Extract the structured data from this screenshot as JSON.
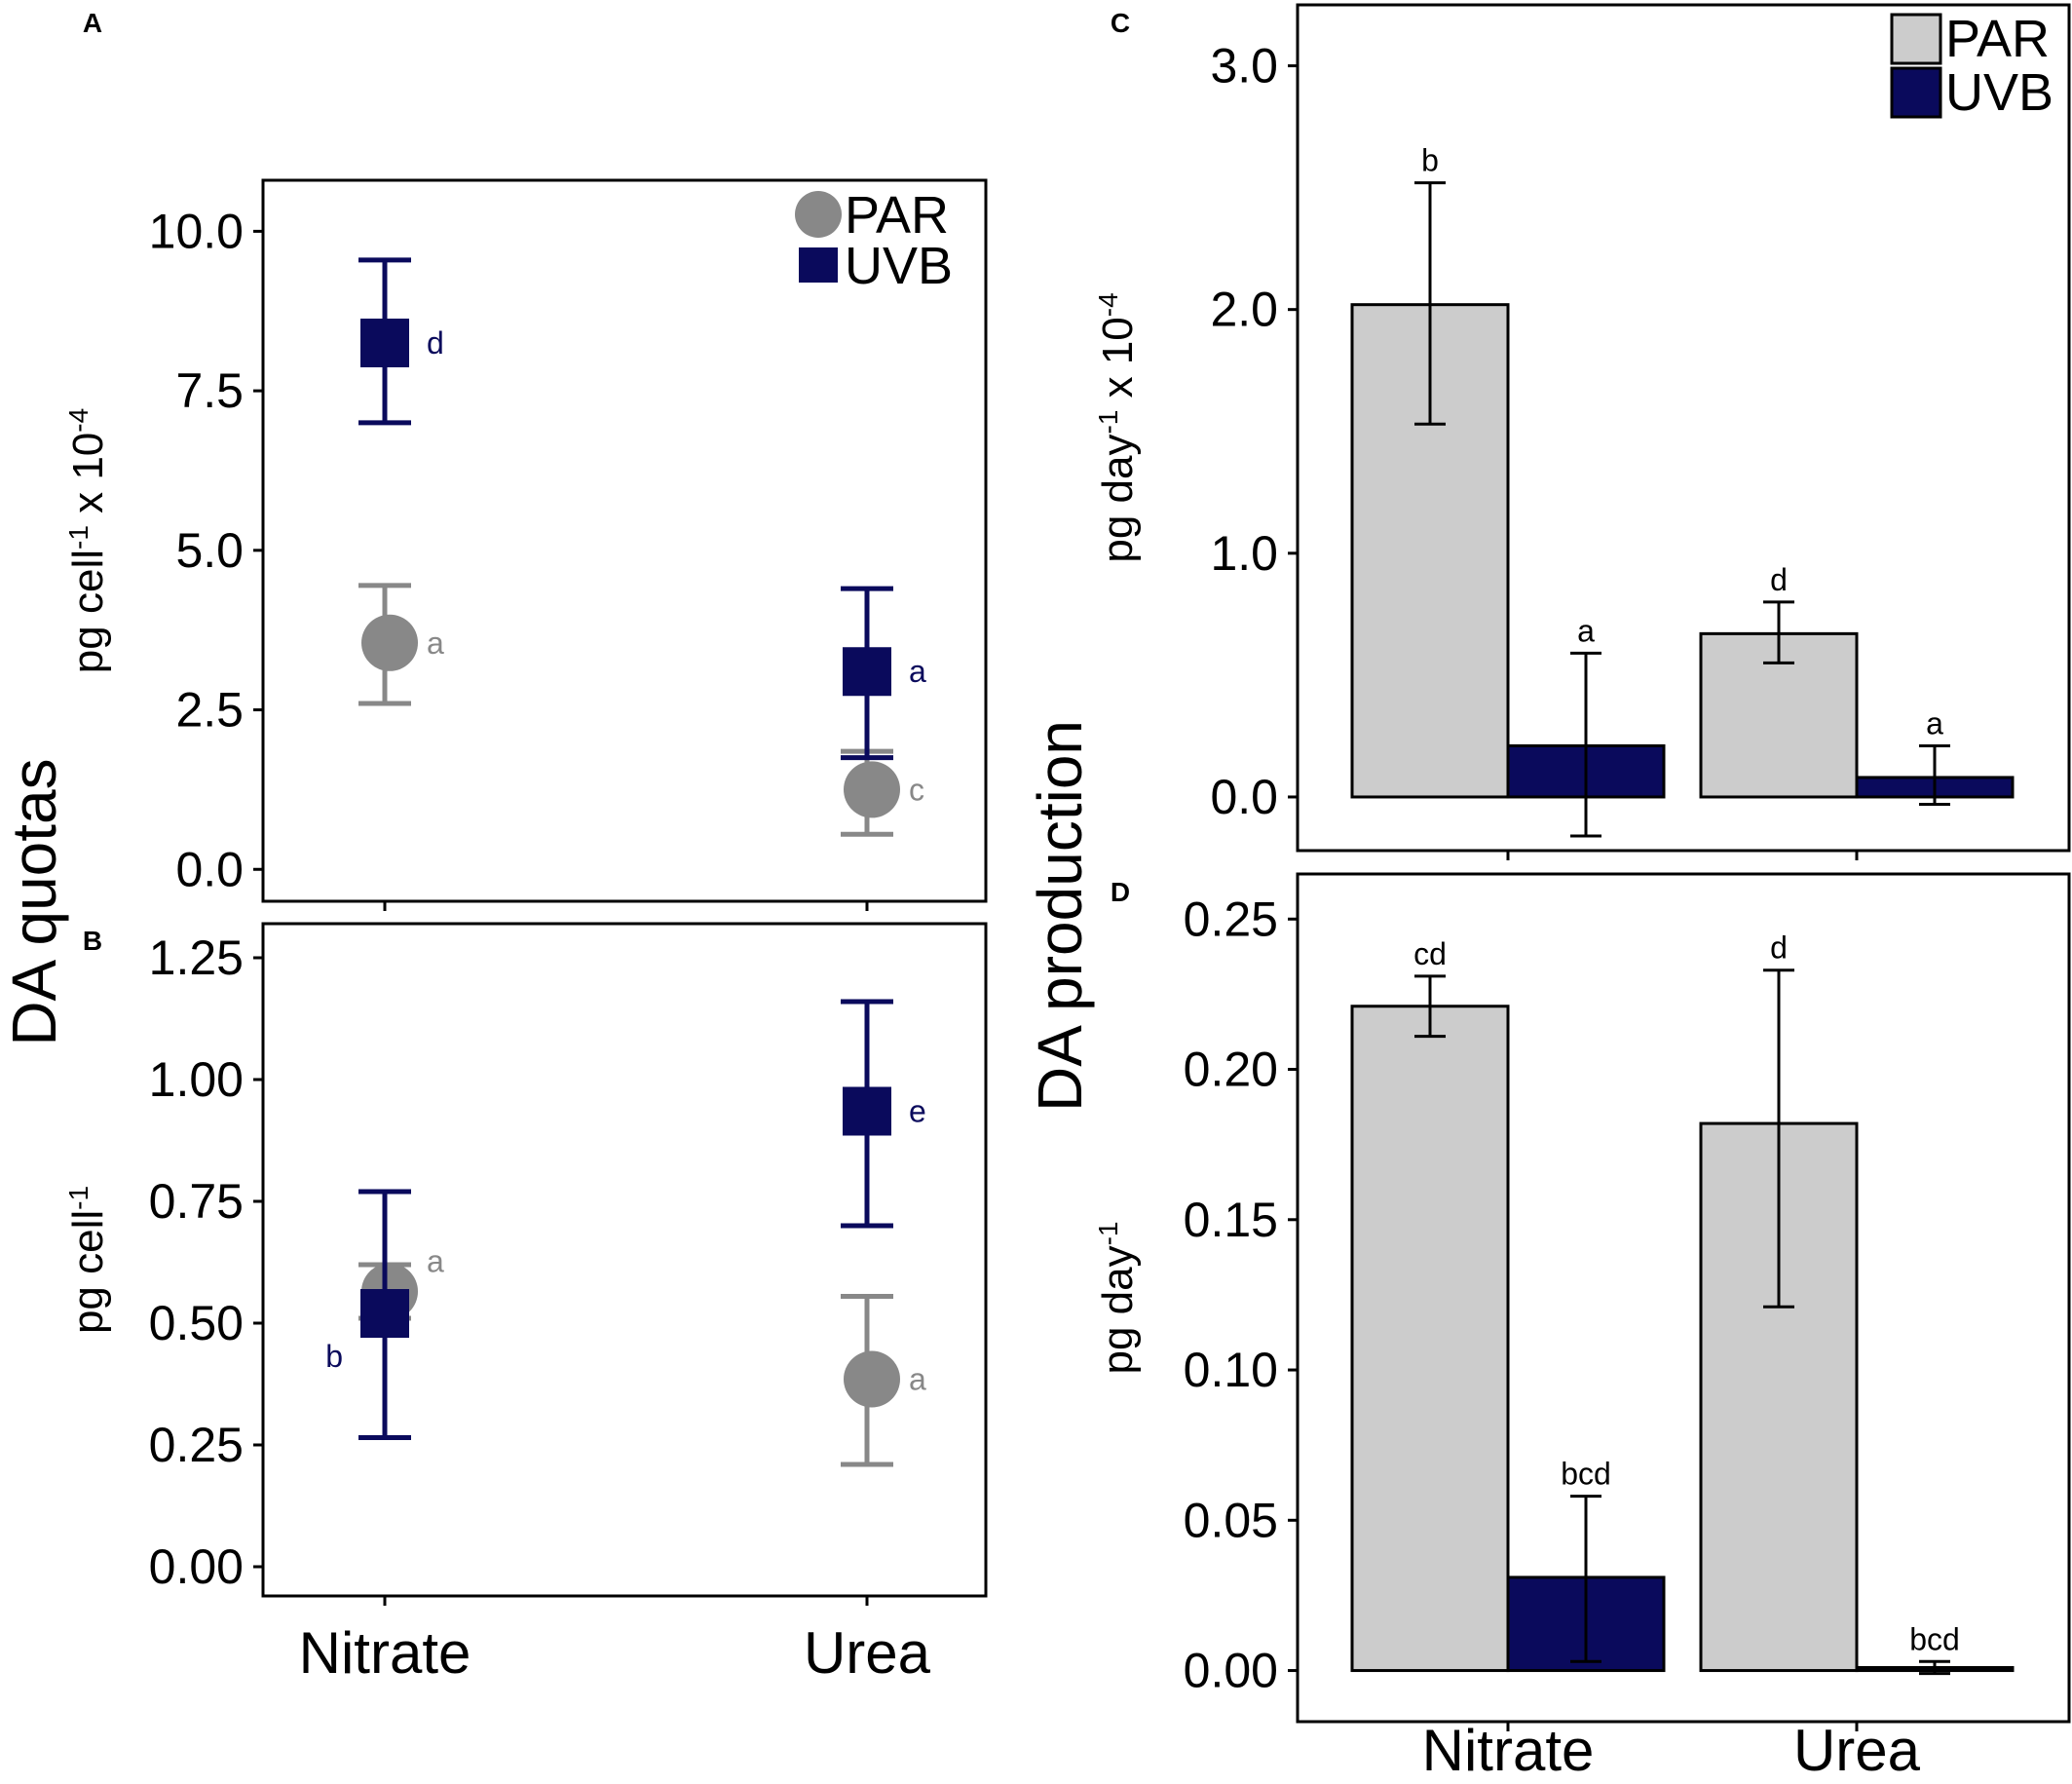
{
  "colors": {
    "PAR_point": "#888888",
    "UVB_point": "#0a0a5c",
    "PAR_bar": "#cccccc",
    "UVB_bar": "#0a0a5c",
    "errorbar_bar": "#000000",
    "frame": "#000000"
  },
  "group_titles": {
    "quotas": "DA quotas",
    "production": "DA production"
  },
  "chart_data": [
    {
      "id": "A",
      "panel_letter": "A",
      "type": "scatter",
      "categories": [
        "Nitrate",
        "Urea"
      ],
      "show_category_labels": false,
      "ylabel": "pg cell-1 x 10-4",
      "ylabel_parts": {
        "base": "pg cell",
        "sup1": "-1",
        "mid": " x 10",
        "sup2": "-4"
      },
      "ylim": [
        -0.5,
        10.8
      ],
      "yticks": [
        0.0,
        2.5,
        5.0,
        7.5,
        10.0
      ],
      "ytick_labels": [
        "0.0",
        "2.5",
        "5.0",
        "7.5",
        "10.0"
      ],
      "legend": {
        "position": "top-right",
        "entries": [
          "PAR",
          "UVB"
        ]
      },
      "series": [
        {
          "name": "PAR",
          "values": [
            3.55,
            1.25
          ],
          "err_low": [
            2.6,
            0.55
          ],
          "err_high": [
            4.45,
            1.85
          ],
          "labels": [
            "a",
            "c"
          ]
        },
        {
          "name": "UVB",
          "values": [
            8.25,
            3.1
          ],
          "err_low": [
            7.0,
            1.75
          ],
          "err_high": [
            9.55,
            4.4
          ],
          "labels": [
            "d",
            "a"
          ]
        }
      ]
    },
    {
      "id": "B",
      "panel_letter": "B",
      "type": "scatter",
      "categories": [
        "Nitrate",
        "Urea"
      ],
      "show_category_labels": true,
      "ylabel": "pg cell-1",
      "ylabel_parts": {
        "base": "pg cell",
        "sup1": "-1",
        "mid": "",
        "sup2": ""
      },
      "ylim": [
        -0.06,
        1.32
      ],
      "yticks": [
        0.0,
        0.25,
        0.5,
        0.75,
        1.0,
        1.25
      ],
      "ytick_labels": [
        "0.00",
        "0.25",
        "0.50",
        "0.75",
        "1.00",
        "1.25"
      ],
      "series": [
        {
          "name": "PAR",
          "values": [
            0.565,
            0.385
          ],
          "err_low": [
            0.51,
            0.21
          ],
          "err_high": [
            0.62,
            0.555
          ],
          "labels": [
            "a",
            "a"
          ]
        },
        {
          "name": "UVB",
          "values": [
            0.52,
            0.935
          ],
          "err_low": [
            0.265,
            0.7
          ],
          "err_high": [
            0.77,
            1.16
          ],
          "labels": [
            "b",
            "e"
          ]
        }
      ]
    },
    {
      "id": "C",
      "panel_letter": "C",
      "type": "bar",
      "categories": [
        "Nitrate",
        "Urea"
      ],
      "show_category_labels": false,
      "ylabel": "pg day-1 x 10-4",
      "ylabel_parts": {
        "base": "pg day",
        "sup1": "-1",
        "mid": " x 10",
        "sup2": "-4"
      },
      "ylim": [
        -0.22,
        3.25
      ],
      "yticks": [
        0.0,
        1.0,
        2.0,
        3.0
      ],
      "ytick_labels": [
        "0.0",
        "1.0",
        "2.0",
        "3.0"
      ],
      "legend": {
        "position": "top-right",
        "entries": [
          "PAR",
          "UVB"
        ]
      },
      "series": [
        {
          "name": "PAR",
          "values": [
            2.02,
            0.67
          ],
          "err_low": [
            1.53,
            0.55
          ],
          "err_high": [
            2.52,
            0.8
          ],
          "labels": [
            "b",
            "d"
          ]
        },
        {
          "name": "UVB",
          "values": [
            0.21,
            0.08
          ],
          "err_low": [
            -0.16,
            -0.03
          ],
          "err_high": [
            0.59,
            0.21
          ],
          "labels": [
            "a",
            "a"
          ]
        }
      ]
    },
    {
      "id": "D",
      "panel_letter": "D",
      "type": "bar",
      "categories": [
        "Nitrate",
        "Urea"
      ],
      "show_category_labels": true,
      "ylabel": "pg day-1",
      "ylabel_parts": {
        "base": "pg day",
        "sup1": "-1",
        "mid": "",
        "sup2": ""
      },
      "ylim": [
        -0.017,
        0.265
      ],
      "yticks": [
        0.0,
        0.05,
        0.1,
        0.15,
        0.2,
        0.25
      ],
      "ytick_labels": [
        "0.00",
        "0.05",
        "0.10",
        "0.15",
        "0.20",
        "0.25"
      ],
      "series": [
        {
          "name": "PAR",
          "values": [
            0.221,
            0.182
          ],
          "err_low": [
            0.211,
            0.121
          ],
          "err_high": [
            0.231,
            0.233
          ],
          "labels": [
            "cd",
            "d"
          ]
        },
        {
          "name": "UVB",
          "values": [
            0.031,
            0.001
          ],
          "err_low": [
            0.003,
            -0.001
          ],
          "err_high": [
            0.058,
            0.003
          ],
          "labels": [
            "bcd",
            "bcd"
          ]
        }
      ]
    }
  ]
}
